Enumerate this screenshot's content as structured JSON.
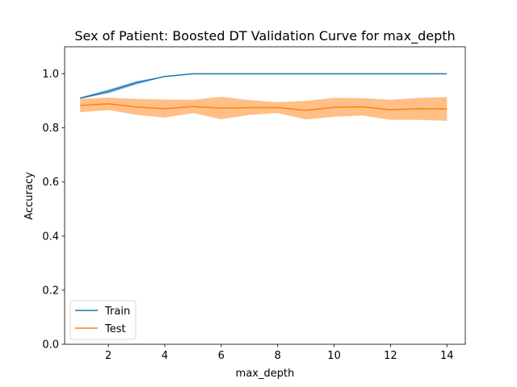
{
  "chart_data": {
    "type": "line",
    "title": "Sex of Patient: Boosted DT Validation Curve for max_depth",
    "xlabel": "max_depth",
    "ylabel": "Accuracy",
    "x": [
      1,
      2,
      3,
      4,
      5,
      6,
      7,
      8,
      9,
      10,
      11,
      12,
      13,
      14
    ],
    "xlim": [
      0.45,
      14.65
    ],
    "ylim": [
      0.0,
      1.1
    ],
    "xticks": [
      2,
      4,
      6,
      8,
      10,
      12,
      14
    ],
    "yticks": [
      0.0,
      0.2,
      0.4,
      0.6,
      0.8,
      1.0
    ],
    "grid": false,
    "legend_position": "lower-left",
    "series": [
      {
        "name": "Train",
        "color": "#1f77b4",
        "values": [
          0.91,
          0.935,
          0.967,
          0.99,
          1.0,
          1.0,
          1.0,
          1.0,
          1.0,
          1.0,
          1.0,
          1.0,
          1.0,
          1.0
        ],
        "lower": [
          0.907,
          0.928,
          0.961,
          0.989,
          1.0,
          1.0,
          1.0,
          1.0,
          1.0,
          1.0,
          1.0,
          1.0,
          1.0,
          1.0
        ],
        "upper": [
          0.913,
          0.942,
          0.973,
          0.991,
          1.0,
          1.0,
          1.0,
          1.0,
          1.0,
          1.0,
          1.0,
          1.0,
          1.0,
          1.0
        ]
      },
      {
        "name": "Test",
        "color": "#ff7f0e",
        "values": [
          0.883,
          0.889,
          0.877,
          0.871,
          0.879,
          0.873,
          0.875,
          0.875,
          0.865,
          0.876,
          0.878,
          0.867,
          0.871,
          0.87
        ],
        "lower": [
          0.858,
          0.866,
          0.848,
          0.838,
          0.855,
          0.832,
          0.848,
          0.855,
          0.831,
          0.841,
          0.846,
          0.83,
          0.83,
          0.826
        ],
        "upper": [
          0.907,
          0.912,
          0.907,
          0.905,
          0.904,
          0.915,
          0.903,
          0.895,
          0.9,
          0.911,
          0.91,
          0.904,
          0.911,
          0.914
        ]
      }
    ]
  }
}
